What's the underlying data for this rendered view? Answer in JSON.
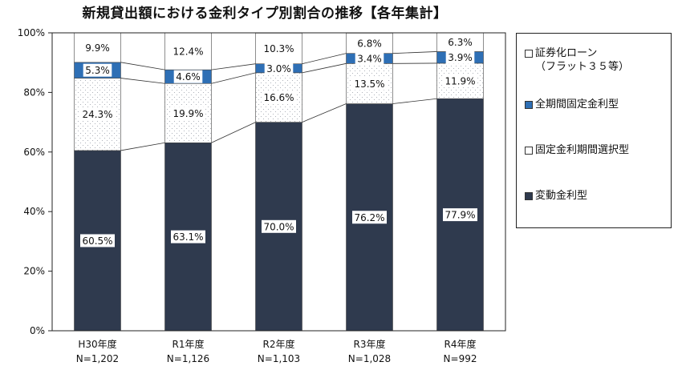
{
  "chart_data": {
    "type": "bar",
    "stacked": true,
    "title": "新規貸出額における金利タイプ別割合の推移【各年集計】",
    "categories": [
      "H30年度",
      "R1年度",
      "R2年度",
      "R3年度",
      "R4年度"
    ],
    "category_counts": [
      "N=1,202",
      "N=1,126",
      "N=1,103",
      "N=1,028",
      "N=992"
    ],
    "series": [
      {
        "name": "変動金利型",
        "values": [
          60.5,
          63.1,
          70.0,
          76.2,
          77.9
        ],
        "labels": [
          "60.5%",
          "63.1%",
          "70.0%",
          "76.2%",
          "77.9%"
        ],
        "color": "#2f3a4e",
        "pattern": "solid"
      },
      {
        "name": "固定金利期間選択型",
        "values": [
          24.3,
          19.9,
          16.6,
          13.5,
          11.9
        ],
        "labels": [
          "24.3%",
          "19.9%",
          "16.6%",
          "13.5%",
          "11.9%"
        ],
        "color": "#ffffff",
        "pattern": "dots"
      },
      {
        "name": "全期間固定金利型",
        "values": [
          5.3,
          4.6,
          3.0,
          3.4,
          3.9
        ],
        "labels": [
          "5.3%",
          "4.6%",
          "3.0%",
          "3.4%",
          "3.9%"
        ],
        "color": "#2e6fb5",
        "pattern": "solid"
      },
      {
        "name": "証券化ローン\n（フラット３５等）",
        "values": [
          9.9,
          12.4,
          10.3,
          6.8,
          6.3
        ],
        "labels": [
          "9.9%",
          "12.4%",
          "10.3%",
          "6.8%",
          "6.3%"
        ],
        "color": "#ffffff",
        "pattern": "none"
      }
    ],
    "ylim": [
      0,
      100
    ],
    "yticks": [
      0,
      20,
      40,
      60,
      80,
      100
    ],
    "ytick_labels": [
      "0%",
      "20%",
      "40%",
      "60%",
      "80%",
      "100%"
    ],
    "xlabel": "",
    "ylabel": "",
    "legend_position": "right",
    "series_connector_lines": true
  },
  "legend": {
    "items": [
      {
        "label": "証券化ローン\n（フラット３５等）",
        "color": "#ffffff"
      },
      {
        "label": "全期間固定金利型",
        "color": "#2e6fb5"
      },
      {
        "label": "固定金利期間選択型",
        "color": "#ffffff"
      },
      {
        "label": "変動金利型",
        "color": "#2f3a4e"
      }
    ]
  }
}
